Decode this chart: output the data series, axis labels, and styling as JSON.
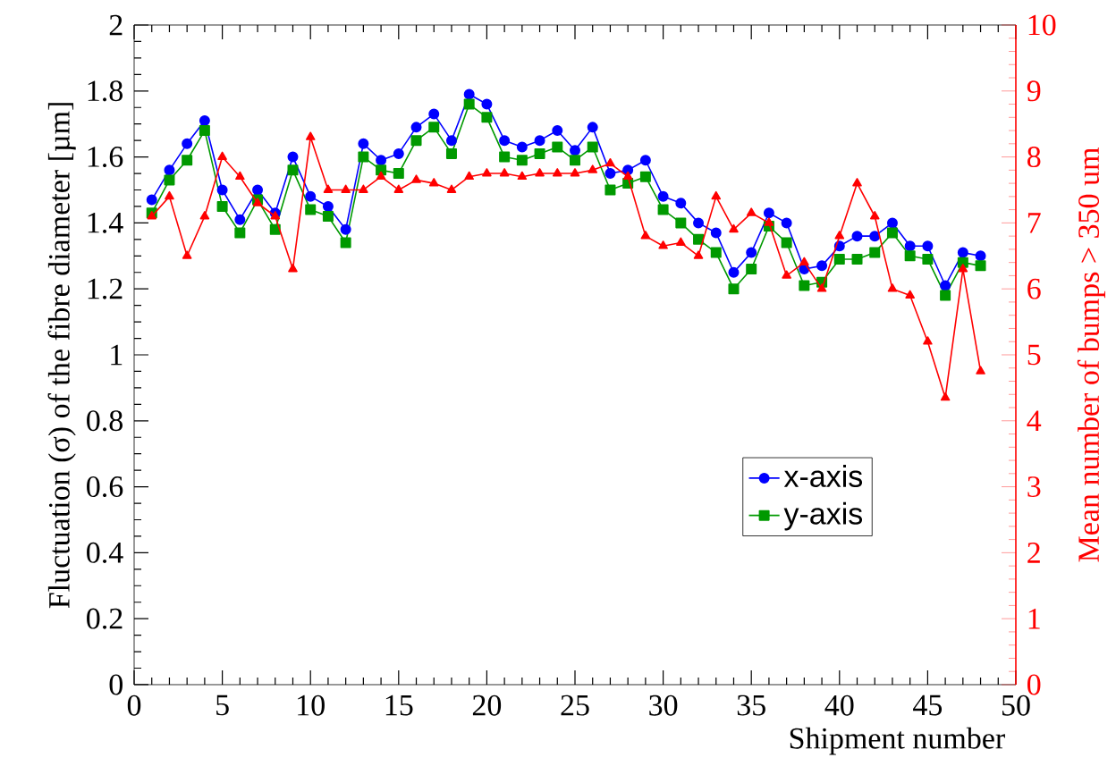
{
  "chart_data": {
    "type": "line",
    "xlabel": "Shipment number",
    "ylabel": "Fluctuation (σ) of the fibre diameter [µm]",
    "y2label": "Mean number of bumps > 350 um",
    "x": [
      1,
      2,
      3,
      4,
      5,
      6,
      7,
      8,
      9,
      10,
      11,
      12,
      13,
      14,
      15,
      16,
      17,
      18,
      19,
      20,
      21,
      22,
      23,
      24,
      25,
      26,
      27,
      28,
      29,
      30,
      31,
      32,
      33,
      34,
      35,
      36,
      37,
      38,
      39,
      40,
      41,
      42,
      43,
      44,
      45,
      46,
      47,
      48
    ],
    "series": [
      {
        "name": "x-axis",
        "color": "#0000ff",
        "marker": "circle",
        "values": [
          1.47,
          1.56,
          1.64,
          1.71,
          1.5,
          1.41,
          1.5,
          1.43,
          1.6,
          1.48,
          1.45,
          1.38,
          1.64,
          1.59,
          1.61,
          1.69,
          1.73,
          1.65,
          1.79,
          1.76,
          1.65,
          1.63,
          1.65,
          1.68,
          1.62,
          1.69,
          1.55,
          1.56,
          1.59,
          1.48,
          1.46,
          1.4,
          1.37,
          1.25,
          1.31,
          1.43,
          1.4,
          1.26,
          1.27,
          1.33,
          1.36,
          1.36,
          1.4,
          1.33,
          1.33,
          1.21,
          1.31,
          1.3
        ]
      },
      {
        "name": "y-axis",
        "color": "#009900",
        "marker": "square",
        "values": [
          1.43,
          1.53,
          1.59,
          1.68,
          1.45,
          1.37,
          1.47,
          1.38,
          1.56,
          1.44,
          1.42,
          1.34,
          1.6,
          1.56,
          1.55,
          1.65,
          1.69,
          1.61,
          1.76,
          1.72,
          1.6,
          1.59,
          1.61,
          1.63,
          1.59,
          1.63,
          1.5,
          1.52,
          1.54,
          1.44,
          1.4,
          1.35,
          1.31,
          1.2,
          1.26,
          1.39,
          1.34,
          1.21,
          1.22,
          1.29,
          1.29,
          1.31,
          1.37,
          1.3,
          1.29,
          1.18,
          1.28,
          1.27
        ]
      },
      {
        "color": "#ff0000",
        "marker": "triangle",
        "axis": "y2",
        "values": [
          7.1,
          7.4,
          6.5,
          7.1,
          8.0,
          7.7,
          7.3,
          7.1,
          6.3,
          8.3,
          7.5,
          7.5,
          7.5,
          7.7,
          7.5,
          7.65,
          7.6,
          7.5,
          7.7,
          7.75,
          7.75,
          7.7,
          7.75,
          7.75,
          7.75,
          7.8,
          7.9,
          7.7,
          6.8,
          6.65,
          6.7,
          6.5,
          7.4,
          6.9,
          7.15,
          7.0,
          6.2,
          6.4,
          6.0,
          6.8,
          7.6,
          7.1,
          6.0,
          5.9,
          5.2,
          4.35,
          6.3,
          4.75
        ]
      }
    ],
    "xlim": [
      0,
      50
    ],
    "xticks": [
      0,
      5,
      10,
      15,
      20,
      25,
      30,
      35,
      40,
      45,
      50
    ],
    "ylim": [
      0,
      2
    ],
    "yticks": [
      0,
      0.2,
      0.4,
      0.6,
      0.8,
      1,
      1.2,
      1.4,
      1.6,
      1.8,
      2
    ],
    "y2lim": [
      0,
      10
    ],
    "y2ticks": [
      0,
      1,
      2,
      3,
      4,
      5,
      6,
      7,
      8,
      9,
      10
    ],
    "legend": "right"
  }
}
